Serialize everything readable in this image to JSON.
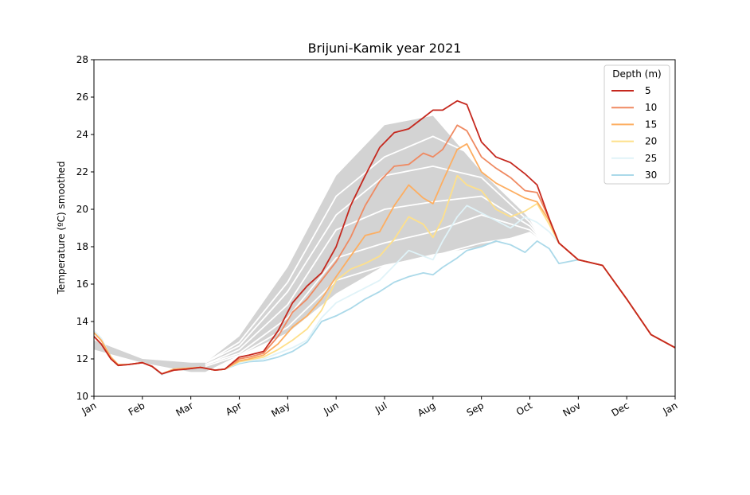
{
  "chart_data": {
    "type": "line",
    "title": "Brijuni-Kamik year 2021",
    "ylabel": "Temperature (ºC) smoothed",
    "xlabel": "",
    "ylim": [
      10,
      28
    ],
    "yticks": [
      10,
      12,
      14,
      16,
      18,
      20,
      22,
      24,
      26,
      28
    ],
    "xlim": [
      0,
      12
    ],
    "xticks": [
      "Jan",
      "Feb",
      "Mar",
      "Apr",
      "May",
      "Jun",
      "Jul",
      "Aug",
      "Sep",
      "Oct",
      "Nov",
      "Dec",
      "Jan"
    ],
    "grid": false,
    "legend": {
      "title": "Depth (m)",
      "position": "top-right"
    },
    "climatology_band": {
      "x": [
        0,
        1,
        2,
        2.3,
        3,
        4,
        5,
        6,
        7,
        8,
        9,
        9.3
      ],
      "lower": [
        12.5,
        11.8,
        11.3,
        11.3,
        12.2,
        13.4,
        15.5,
        17.0,
        17.6,
        18.0,
        18.8,
        18.2
      ],
      "upper": [
        13.0,
        12.0,
        11.8,
        11.8,
        13.2,
        16.9,
        21.8,
        24.5,
        25.0,
        22.0,
        19.5,
        18.2
      ]
    },
    "climatology_lines": [
      {
        "x": [
          2.3,
          3,
          4,
          5,
          6,
          7,
          8,
          9,
          9.3
        ],
        "y": [
          11.8,
          12.9,
          16.1,
          20.7,
          22.8,
          23.9,
          22.7,
          19.5,
          18.2
        ]
      },
      {
        "x": [
          2.3,
          3,
          4,
          5,
          6,
          7,
          8,
          9,
          9.3
        ],
        "y": [
          11.8,
          12.7,
          15.6,
          19.7,
          21.8,
          22.3,
          21.7,
          19.3,
          18.2
        ]
      },
      {
        "x": [
          2.3,
          3,
          4,
          5,
          6,
          7,
          8,
          9,
          9.3
        ],
        "y": [
          11.7,
          12.5,
          14.9,
          18.9,
          20.0,
          20.4,
          20.7,
          19.1,
          18.2
        ]
      },
      {
        "x": [
          2.3,
          3,
          4,
          5,
          6,
          7,
          8,
          9,
          9.3
        ],
        "y": [
          11.7,
          12.3,
          14.2,
          17.4,
          18.2,
          18.8,
          19.7,
          18.9,
          18.2
        ]
      },
      {
        "x": [
          2.3,
          3,
          4,
          5,
          6,
          7,
          8,
          9,
          9.3
        ],
        "y": [
          11.6,
          12.2,
          13.7,
          16.2,
          17.0,
          17.5,
          18.2,
          18.6,
          18.2
        ]
      }
    ],
    "series": [
      {
        "name": "5",
        "color": "#c5281e",
        "x": [
          0,
          0.15,
          0.35,
          0.5,
          0.7,
          1.0,
          1.2,
          1.4,
          1.65,
          1.9,
          2.2,
          2.5,
          2.7,
          3.0,
          3.2,
          3.5,
          3.8,
          4.1,
          4.4,
          4.7,
          5.0,
          5.3,
          5.6,
          5.9,
          6.2,
          6.5,
          6.8,
          7.0,
          7.2,
          7.5,
          7.7,
          8.0,
          8.3,
          8.6,
          8.9,
          9.15,
          9.4,
          9.6,
          10.0,
          10.5,
          11.0,
          11.5,
          12.0
        ],
        "y": [
          13.2,
          12.8,
          12.0,
          11.65,
          11.7,
          11.8,
          11.6,
          11.2,
          11.4,
          11.45,
          11.55,
          11.4,
          11.45,
          12.1,
          12.2,
          12.4,
          13.5,
          15.0,
          15.9,
          16.6,
          18.0,
          20.2,
          21.8,
          23.3,
          24.1,
          24.3,
          24.9,
          25.3,
          25.3,
          25.8,
          25.6,
          23.6,
          22.8,
          22.5,
          21.9,
          21.3,
          19.5,
          18.2,
          17.3,
          17.0,
          15.2,
          13.3,
          12.6
        ]
      },
      {
        "name": "10",
        "color": "#ef8a62",
        "x": [
          0,
          0.15,
          0.35,
          0.5,
          0.7,
          1.0,
          1.2,
          1.4,
          1.65,
          1.9,
          2.2,
          2.5,
          2.7,
          3.0,
          3.2,
          3.5,
          3.8,
          4.1,
          4.4,
          4.7,
          5.0,
          5.3,
          5.6,
          5.9,
          6.2,
          6.5,
          6.8,
          7.0,
          7.2,
          7.5,
          7.7,
          8.0,
          8.3,
          8.6,
          8.9,
          9.15,
          9.4,
          9.6,
          10.0,
          10.5,
          11.0,
          11.5,
          12.0
        ],
        "y": [
          13.2,
          12.8,
          12.0,
          11.65,
          11.7,
          11.8,
          11.6,
          11.2,
          11.4,
          11.45,
          11.55,
          11.4,
          11.45,
          12.0,
          12.1,
          12.3,
          13.2,
          14.5,
          15.2,
          16.2,
          17.2,
          18.5,
          20.2,
          21.5,
          22.3,
          22.4,
          23.0,
          22.8,
          23.2,
          24.5,
          24.2,
          22.8,
          22.2,
          21.7,
          21.0,
          20.9,
          19.5,
          18.2,
          17.3,
          17.0,
          15.2,
          13.3,
          12.6
        ]
      },
      {
        "name": "15",
        "color": "#fdae61",
        "x": [
          0,
          0.15,
          0.35,
          0.5,
          0.7,
          1.0,
          1.2,
          1.4,
          1.65,
          1.9,
          2.2,
          2.5,
          2.7,
          3.0,
          3.2,
          3.5,
          3.8,
          4.1,
          4.4,
          4.7,
          5.0,
          5.3,
          5.6,
          5.9,
          6.2,
          6.5,
          6.8,
          7.0,
          7.2,
          7.5,
          7.7,
          8.0,
          8.3,
          8.6,
          8.9,
          9.15,
          9.4,
          9.6,
          10.0,
          10.5,
          11.0,
          11.5,
          12.0
        ],
        "y": [
          13.4,
          13.0,
          12.1,
          11.7,
          11.7,
          11.8,
          11.6,
          11.2,
          11.45,
          11.5,
          11.55,
          11.4,
          11.45,
          11.9,
          12.0,
          12.2,
          12.8,
          13.7,
          14.3,
          15.2,
          16.4,
          17.5,
          18.6,
          18.8,
          20.2,
          21.3,
          20.6,
          20.3,
          21.5,
          23.2,
          23.5,
          22.0,
          21.4,
          21.0,
          20.6,
          20.4,
          19.4,
          18.2,
          17.3,
          17.0,
          15.2,
          13.3,
          12.6
        ]
      },
      {
        "name": "20",
        "color": "#fee08b",
        "x": [
          0,
          0.15,
          0.35,
          0.5,
          0.7,
          1.0,
          1.2,
          1.4,
          1.65,
          1.9,
          2.2,
          2.5,
          2.7,
          3.0,
          3.2,
          3.5,
          3.8,
          4.1,
          4.4,
          4.7,
          5.0,
          5.3,
          5.6,
          5.9,
          6.2,
          6.5,
          6.8,
          7.0,
          7.2,
          7.5,
          7.7,
          8.0,
          8.3,
          8.6,
          8.9,
          9.15,
          9.4,
          9.6,
          10.0,
          10.5,
          11.0,
          11.5,
          12.0
        ],
        "y": [
          13.4,
          13.0,
          12.1,
          11.7,
          11.7,
          11.8,
          11.6,
          11.2,
          11.45,
          11.5,
          11.55,
          11.4,
          11.45,
          11.85,
          11.95,
          12.1,
          12.5,
          13.0,
          13.6,
          14.6,
          16.2,
          16.8,
          17.1,
          17.5,
          18.4,
          19.6,
          19.2,
          18.5,
          19.5,
          21.8,
          21.3,
          21.0,
          20.0,
          19.6,
          19.9,
          20.3,
          19.2,
          18.2,
          17.3,
          17.0,
          15.2,
          13.3,
          12.6
        ]
      },
      {
        "name": "25",
        "color": "#e0f3f8",
        "x": [
          0,
          0.15,
          0.35,
          0.5,
          0.7,
          1.0,
          1.2,
          1.4,
          1.65,
          1.9,
          2.2,
          2.5,
          2.7,
          3.0,
          3.2,
          3.5,
          3.8,
          4.1,
          4.4,
          4.7,
          5.0,
          5.3,
          5.6,
          5.9,
          6.2,
          6.5,
          6.8,
          7.0,
          7.2,
          7.5,
          7.7,
          8.0,
          8.3,
          8.6,
          8.9,
          9.15,
          9.4,
          9.6,
          10.0,
          10.5,
          11.0,
          11.5,
          12.0
        ],
        "y": [
          13.5,
          13.1,
          12.1,
          11.7,
          11.7,
          11.8,
          11.6,
          11.15,
          11.45,
          11.5,
          11.55,
          11.4,
          11.45,
          11.8,
          11.9,
          12.0,
          12.3,
          12.6,
          13.0,
          14.2,
          15.0,
          15.4,
          15.8,
          16.2,
          17.0,
          17.8,
          17.5,
          17.3,
          18.3,
          19.6,
          20.2,
          19.8,
          19.4,
          19.0,
          19.6,
          19.3,
          18.8,
          18.2,
          17.3,
          17.0,
          15.2,
          13.3,
          12.6
        ]
      },
      {
        "name": "30",
        "color": "#abd9e9",
        "x": [
          0,
          0.15,
          0.35,
          0.5,
          0.7,
          1.0,
          1.2,
          1.4,
          1.65,
          1.9,
          2.2,
          2.5,
          2.7,
          3.0,
          3.2,
          3.5,
          3.8,
          4.1,
          4.4,
          4.7,
          5.0,
          5.3,
          5.6,
          5.9,
          6.2,
          6.5,
          6.8,
          7.0,
          7.2,
          7.5,
          7.7,
          8.0,
          8.3,
          8.6,
          8.9,
          9.15,
          9.4,
          9.6,
          10.0,
          10.5,
          11.0,
          11.5,
          12.0
        ],
        "y": [
          13.5,
          13.1,
          12.1,
          11.7,
          11.7,
          11.8,
          11.6,
          11.15,
          11.45,
          11.5,
          11.55,
          11.4,
          11.45,
          11.75,
          11.85,
          11.9,
          12.1,
          12.4,
          12.9,
          14.0,
          14.3,
          14.7,
          15.2,
          15.6,
          16.1,
          16.4,
          16.6,
          16.5,
          16.9,
          17.4,
          17.8,
          18.0,
          18.3,
          18.1,
          17.7,
          18.3,
          17.9,
          17.1,
          17.3,
          17.0,
          15.2,
          13.3,
          12.6
        ]
      }
    ]
  }
}
